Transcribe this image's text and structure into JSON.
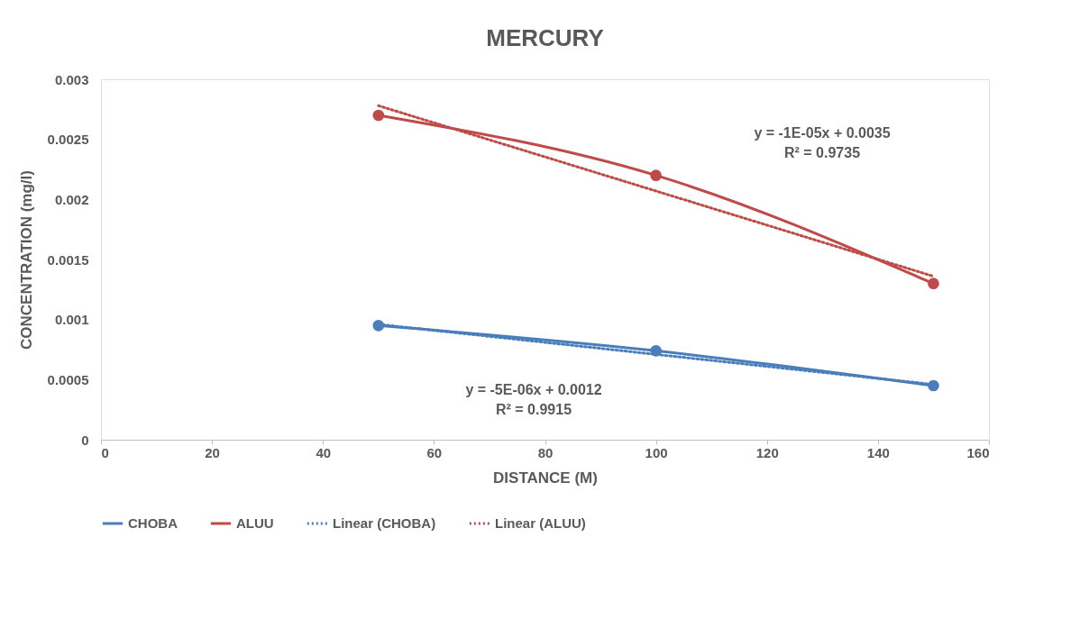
{
  "chart_data": {
    "type": "line",
    "title": "MERCURY",
    "xlabel": "DISTANCE (M)",
    "ylabel": "CONCENTRATION (mg/l)",
    "x": [
      50,
      100,
      150
    ],
    "series": [
      {
        "name": "CHOBA",
        "color": "#4a7ebb",
        "values": [
          0.00095,
          0.00074,
          0.00045
        ],
        "marker": "circle",
        "line_style": "solid"
      },
      {
        "name": "ALUU",
        "color": "#be4b48",
        "values": [
          0.0027,
          0.0022,
          0.0013
        ],
        "marker": "circle",
        "line_style": "solid"
      },
      {
        "name": "Linear (CHOBA)",
        "color": "#4a7ebb",
        "values": [
          0.00096,
          0.00071,
          0.00046
        ],
        "marker": "none",
        "line_style": "dotted"
      },
      {
        "name": "Linear (ALUU)",
        "color": "#be4b48",
        "values": [
          0.00278,
          0.00207,
          0.00136
        ],
        "marker": "none",
        "line_style": "dotted"
      }
    ],
    "xlim": [
      0,
      160
    ],
    "xticks": [
      0,
      20,
      40,
      60,
      80,
      100,
      120,
      140,
      160
    ],
    "ylim": [
      0,
      0.003
    ],
    "yticks": [
      0,
      0.0005,
      0.001,
      0.0015,
      0.002,
      0.0025,
      0.003
    ],
    "grid": false,
    "legend": "bottom",
    "annotations": [
      "y = -1E-05x + 0.0035\nR² = 0.9735",
      "y = -5E-06x + 0.0012\nR² = 0.9915"
    ]
  }
}
